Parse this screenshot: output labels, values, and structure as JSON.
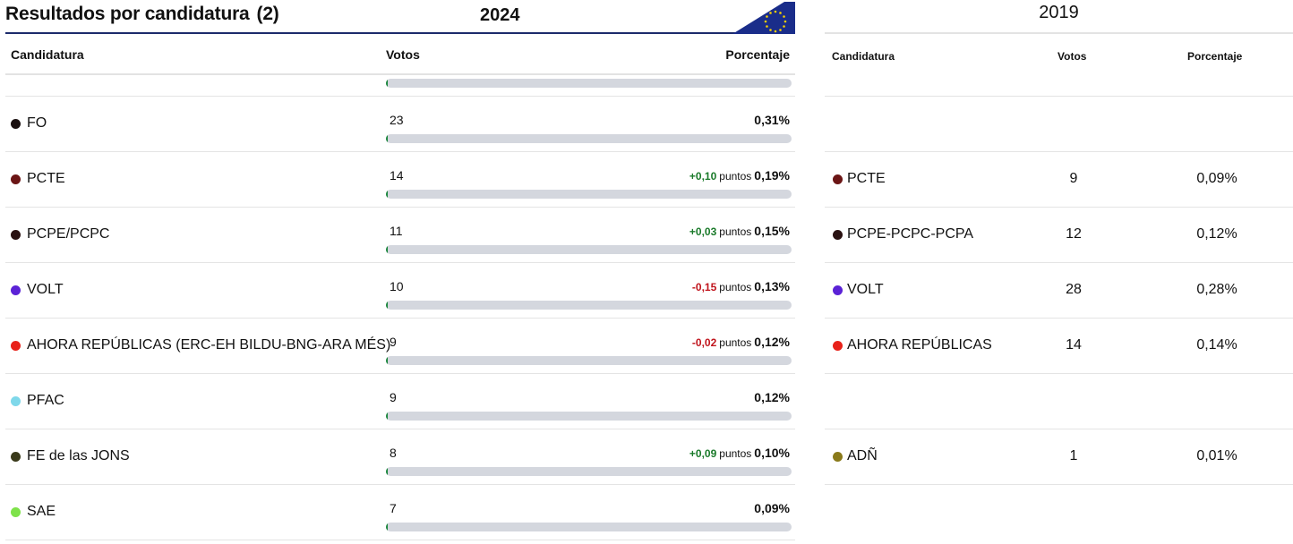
{
  "header": {
    "title": "Resultados por candidatura",
    "count": "(2)",
    "year_current": "2024",
    "year_previous": "2019",
    "flag_icon": "eu-flag-icon",
    "accent_color": "#1c2b6b"
  },
  "columns": {
    "candidatura": "Candidatura",
    "votos": "Votos",
    "porcentaje": "Porcentaje"
  },
  "columns_2019": {
    "candidatura": "Candidatura",
    "votos": "Votos",
    "porcentaje": "Porcentaje"
  },
  "top_row": {
    "fill_fraction": 0.004
  },
  "rows": [
    {
      "name": "FO",
      "color": "#1a1010",
      "votes": "23",
      "diff": "",
      "diff_sign": "",
      "puntos": "",
      "pct": "0,31%"
    },
    {
      "name": "PCTE",
      "color": "#6b1515",
      "votes": "14",
      "diff": "+0,10",
      "diff_sign": "pos",
      "puntos": "puntos",
      "pct": "0,19%"
    },
    {
      "name": "PCPE/PCPC",
      "color": "#2a1212",
      "votes": "11",
      "diff": "+0,03",
      "diff_sign": "pos",
      "puntos": "puntos",
      "pct": "0,15%"
    },
    {
      "name": "VOLT",
      "color": "#5b22d6",
      "votes": "10",
      "diff": "-0,15",
      "diff_sign": "neg",
      "puntos": "puntos",
      "pct": "0,13%"
    },
    {
      "name": "AHORA REPÚBLICAS (ERC-EH BILDU-BNG-ARA MÉS)",
      "color": "#e8221a",
      "votes": "9",
      "diff": "-0,02",
      "diff_sign": "neg",
      "puntos": "puntos",
      "pct": "0,12%"
    },
    {
      "name": "PFAC",
      "color": "#7fd8ea",
      "votes": "9",
      "diff": "",
      "diff_sign": "",
      "puntos": "",
      "pct": "0,12%"
    },
    {
      "name": "FE de las JONS",
      "color": "#3a3a1a",
      "votes": "8",
      "diff": "+0,09",
      "diff_sign": "pos",
      "puntos": "puntos",
      "pct": "0,10%"
    },
    {
      "name": "SAE",
      "color": "#7ee24a",
      "votes": "7",
      "diff": "",
      "diff_sign": "",
      "puntos": "",
      "pct": "0,09%"
    }
  ],
  "rows_2019": [
    {
      "name": "",
      "color": "",
      "votes": "",
      "pct": ""
    },
    {
      "name": "PCTE",
      "color": "#6b1515",
      "votes": "9",
      "pct": "0,09%"
    },
    {
      "name": "PCPE-PCPC-PCPA",
      "color": "#2a1212",
      "votes": "12",
      "pct": "0,12%"
    },
    {
      "name": "VOLT",
      "color": "#5b22d6",
      "votes": "28",
      "pct": "0,28%"
    },
    {
      "name": "AHORA REPÚBLICAS",
      "color": "#e8221a",
      "votes": "14",
      "pct": "0,14%"
    },
    {
      "name": "",
      "color": "",
      "votes": "",
      "pct": ""
    },
    {
      "name": "ADÑ",
      "color": "#8a7a1a",
      "votes": "1",
      "pct": "0,01%"
    },
    {
      "name": "",
      "color": "",
      "votes": "",
      "pct": ""
    }
  ]
}
